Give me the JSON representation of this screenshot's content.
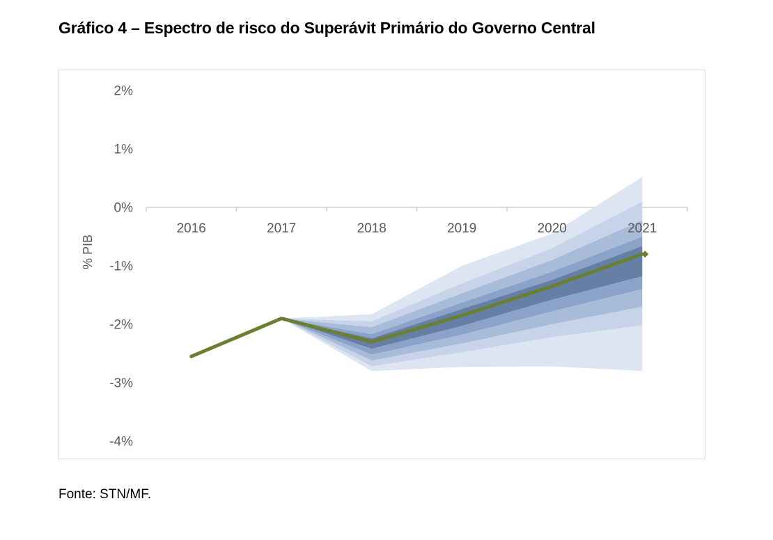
{
  "header": {
    "title": "Gráfico 4 – Espectro de risco do Superávit Primário do Governo Central"
  },
  "footer": {
    "source": "Fonte: STN/MF."
  },
  "colors": {
    "median_line": "#6B7F33",
    "fan_bands_light_to_dark": [
      "#DCE5F1",
      "#C6D3E9",
      "#A8BCDA",
      "#8BA3C8",
      "#667FA5"
    ],
    "axis_text": "#595959",
    "axis_line": "#CFCFCF",
    "frame_border": "#D9D9D9",
    "background": "#FFFFFF"
  },
  "chart_data": {
    "type": "line",
    "subtype": "fan-chart",
    "title": "Gráfico 4 – Espectro de risco do Superávit Primário do Governo Central",
    "xlabel": "",
    "ylabel": "% PIB",
    "unit": "% do PIB",
    "categories": [
      "2016",
      "2017",
      "2018",
      "2019",
      "2020",
      "2021"
    ],
    "series": [
      {
        "name": "median-line",
        "values": [
          -2.55,
          -1.9,
          -2.3,
          -1.85,
          -1.35,
          -0.8
        ]
      }
    ],
    "fan_bands": {
      "description": "confidence bands fanning out from 2017; values are band edge levels in % PIB, top to bottom",
      "categories": [
        "2017",
        "2018",
        "2019",
        "2020",
        "2021"
      ],
      "edge_levels": [
        [
          -1.9,
          -1.83,
          -1.0,
          -0.45,
          0.52
        ],
        [
          -1.9,
          -1.95,
          -1.3,
          -0.7,
          0.1
        ],
        [
          -1.9,
          -2.05,
          -1.47,
          -0.9,
          -0.22
        ],
        [
          -1.9,
          -2.17,
          -1.63,
          -1.1,
          -0.5
        ],
        [
          -1.9,
          -2.24,
          -1.74,
          -1.24,
          -0.66
        ],
        [
          -1.9,
          -2.42,
          -2.03,
          -1.58,
          -1.18
        ],
        [
          -1.9,
          -2.52,
          -2.18,
          -1.78,
          -1.4
        ],
        [
          -1.9,
          -2.62,
          -2.33,
          -2.0,
          -1.7
        ],
        [
          -1.9,
          -2.72,
          -2.48,
          -2.22,
          -2.02
        ],
        [
          -1.9,
          -2.8,
          -2.73,
          -2.72,
          -2.8
        ]
      ],
      "band_shade_indices_light0_dark4": [
        0,
        1,
        2,
        3,
        4,
        3,
        2,
        1,
        0
      ]
    },
    "yticks": {
      "labels": [
        "2%",
        "1%",
        "0%",
        "-1%",
        "-2%",
        "-3%",
        "-4%"
      ],
      "values": [
        2,
        1,
        0,
        -1,
        -2,
        -3,
        -4
      ]
    },
    "ylim": [
      -4.3,
      2.35
    ],
    "grid": "zero-line-only",
    "legend": "none"
  }
}
